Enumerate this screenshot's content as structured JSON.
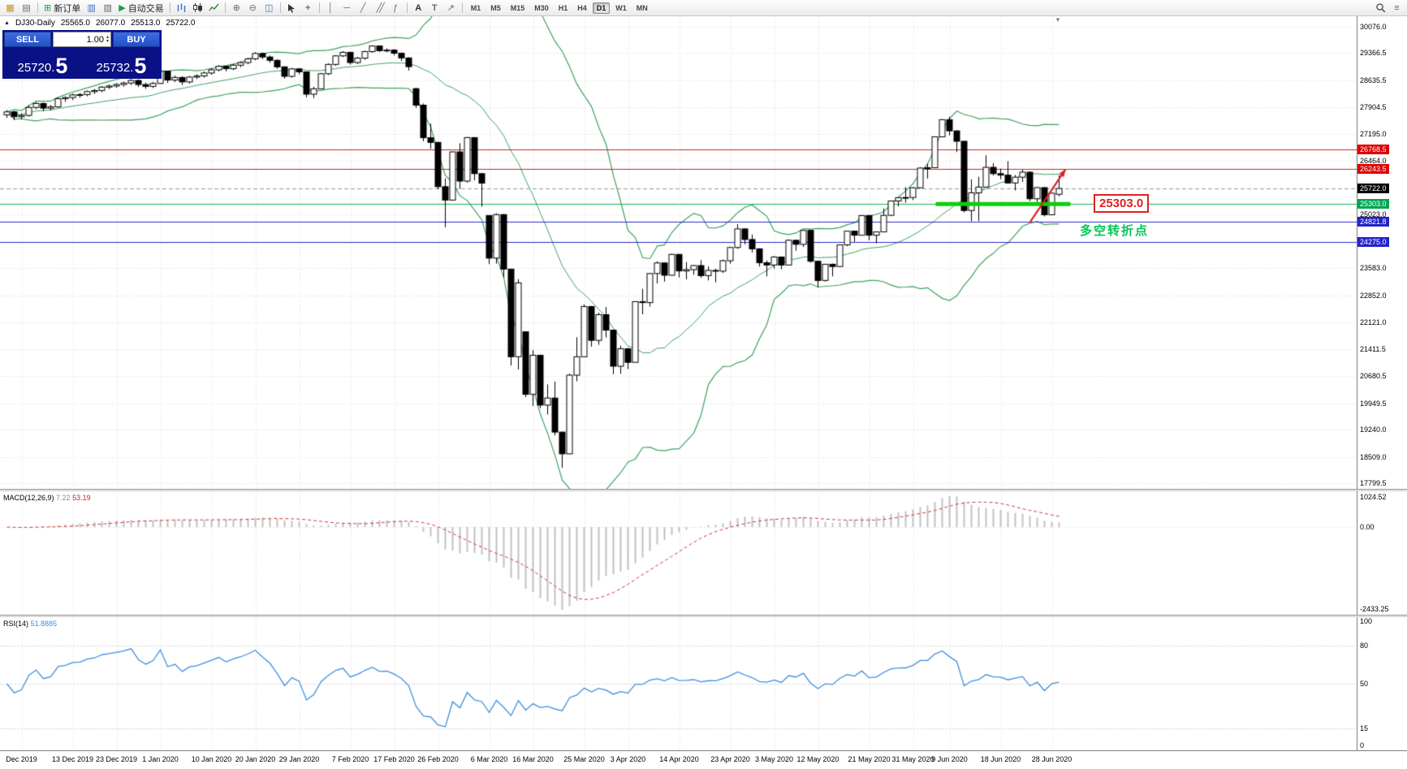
{
  "toolbar": {
    "new_order": "新订单",
    "autotrading": "自动交易",
    "timeframes": [
      "M1",
      "M5",
      "M15",
      "M30",
      "H1",
      "H4",
      "D1",
      "W1",
      "MN"
    ],
    "active_timeframe": "D1"
  },
  "icons": {
    "collapse_triangle": "▲",
    "spinner_up": "▴",
    "spinner_down": "▾",
    "chart_window": "▦",
    "profiles": "▤",
    "new_order": "⊞",
    "navigator": "▥",
    "terminal": "▧",
    "autotrading_play": "▶",
    "zoom_in": "⊕",
    "zoom_out": "⊖",
    "tile_windows": "◫",
    "crosshair": "+",
    "vline": "│",
    "hline": "─",
    "trendline": "╱",
    "channel": "╱╱",
    "fibonacci": "ƒ",
    "text_tool": "A",
    "label_tool": "T",
    "arrows": "↗",
    "menu": "≡",
    "shift_marker": "▼"
  },
  "chart_info": {
    "symbol": "DJ30-Daily",
    "open": "25565.0",
    "high": "26077.0",
    "low": "25513.0",
    "close": "25722.0"
  },
  "trade_panel": {
    "sell_label": "SELL",
    "buy_label": "BUY",
    "volume": "1.00",
    "sell_price_main": "25720.",
    "sell_price_big": "5",
    "buy_price_main": "25732.",
    "buy_price_big": "5"
  },
  "annotations": {
    "price_box_text": "25303.0",
    "turning_point_text": "多空转折点"
  },
  "indicator_labels": {
    "macd_name": "MACD(12,26,9)",
    "macd_value": "7.22",
    "macd_signal": "53.19",
    "rsi_name": "RSI(14)",
    "rsi_value": "51.8885"
  },
  "chart_data": {
    "type": "candlestick",
    "title": "DJ30 Daily",
    "y_range": [
      17650,
      30350
    ],
    "layout": {
      "candle_spacing": 9,
      "candle_width": 7,
      "plot_left": 5
    },
    "y_axis_labels": [
      30076.0,
      29366.5,
      28635.5,
      27904.5,
      27195.0,
      26464.0,
      25023.0,
      23583.0,
      22852.0,
      22121.0,
      21411.5,
      20680.5,
      19949.5,
      19240.0,
      18509.0,
      17799.5
    ],
    "price_tags": [
      {
        "text": "26768.5",
        "price": 26768.5,
        "bg": "#dd0000"
      },
      {
        "text": "26243.5",
        "price": 26243.5,
        "bg": "#dd0000"
      },
      {
        "text": "25722.0",
        "price": 25722.0,
        "bg": "#000000"
      },
      {
        "text": "25303.0",
        "price": 25303.0,
        "bg": "#00a651"
      },
      {
        "text": "24821.8",
        "price": 24821.8,
        "bg": "#2323c8"
      },
      {
        "text": "24275.0",
        "price": 24275.0,
        "bg": "#2323c8"
      }
    ],
    "hlines": [
      {
        "price": 26768.5,
        "color": "#cc2222"
      },
      {
        "price": 26243.5,
        "color": "#cc2222"
      },
      {
        "price": 25303.0,
        "color": "#13b24a"
      },
      {
        "price": 24821.8,
        "color": "#2a2ad0"
      },
      {
        "price": 24275.0,
        "color": "#2a2ad0"
      }
    ],
    "current_price": 25722.0,
    "support_segment": {
      "price": 25303.0,
      "from_idx": 128,
      "color": "#0ad00a",
      "width": 5
    },
    "trend_arrow": {
      "from_idx": 140,
      "from_price": 24810,
      "to_idx": 144,
      "to_price": 26240,
      "color": "#e02020"
    },
    "bollinger": {
      "period": 20,
      "deviation": 2,
      "color": "#3fa05f"
    },
    "macd": {
      "fast": 12,
      "slow": 26,
      "signal": 9,
      "axis_labels": [
        "1024.52",
        "0.00",
        "-2433.25"
      ],
      "hist_color": "#c0c0c0",
      "signal_color": "#d23333"
    },
    "rsi": {
      "period": 14,
      "levels": [
        80,
        50,
        15
      ],
      "axis_labels": [
        "100",
        "80",
        "50",
        "15",
        "0"
      ],
      "color": "#3f8ede"
    },
    "date_labels": [
      {
        "text": "Dec 2019",
        "idx": 2
      },
      {
        "text": "13 Dec 2019",
        "idx": 9
      },
      {
        "text": "23 Dec 2019",
        "idx": 15
      },
      {
        "text": "1 Jan 2020",
        "idx": 21
      },
      {
        "text": "10 Jan 2020",
        "idx": 28
      },
      {
        "text": "20 Jan 2020",
        "idx": 34
      },
      {
        "text": "29 Jan 2020",
        "idx": 40
      },
      {
        "text": "7 Feb 2020",
        "idx": 47
      },
      {
        "text": "17 Feb 2020",
        "idx": 53
      },
      {
        "text": "26 Feb 2020",
        "idx": 59
      },
      {
        "text": "6 Mar 2020",
        "idx": 66
      },
      {
        "text": "16 Mar 2020",
        "idx": 72
      },
      {
        "text": "25 Mar 2020",
        "idx": 79
      },
      {
        "text": "3 Apr 2020",
        "idx": 85
      },
      {
        "text": "14 Apr 2020",
        "idx": 92
      },
      {
        "text": "23 Apr 2020",
        "idx": 99
      },
      {
        "text": "3 May 2020",
        "idx": 105
      },
      {
        "text": "12 May 2020",
        "idx": 111
      },
      {
        "text": "21 May 2020",
        "idx": 118
      },
      {
        "text": "31 May 2020",
        "idx": 124
      },
      {
        "text": "9 Jun 2020",
        "idx": 129
      },
      {
        "text": "18 Jun 2020",
        "idx": 136
      },
      {
        "text": "28 Jun 2020",
        "idx": 143
      }
    ],
    "ohlc": [
      [
        27700,
        27830,
        27620,
        27780
      ],
      [
        27780,
        27815,
        27560,
        27650
      ],
      [
        27650,
        27740,
        27575,
        27685
      ],
      [
        27685,
        27955,
        27650,
        27900
      ],
      [
        27900,
        28045,
        27850,
        28005
      ],
      [
        28005,
        28035,
        27795,
        27880
      ],
      [
        27880,
        27965,
        27820,
        27915
      ],
      [
        27915,
        28165,
        27890,
        28135
      ],
      [
        28135,
        28195,
        28050,
        28165
      ],
      [
        28165,
        28275,
        28100,
        28235
      ],
      [
        28235,
        28285,
        28160,
        28245
      ],
      [
        28245,
        28355,
        28200,
        28325
      ],
      [
        28325,
        28395,
        28260,
        28355
      ],
      [
        28355,
        28475,
        28310,
        28445
      ],
      [
        28445,
        28515,
        28390,
        28475
      ],
      [
        28475,
        28555,
        28430,
        28515
      ],
      [
        28515,
        28595,
        28460,
        28555
      ],
      [
        28555,
        28665,
        28500,
        28625
      ],
      [
        28625,
        28655,
        28450,
        28515
      ],
      [
        28515,
        28565,
        28400,
        28465
      ],
      [
        28465,
        28585,
        28420,
        28545
      ],
      [
        28545,
        28905,
        28535,
        28875
      ],
      [
        28875,
        28885,
        28555,
        28635
      ],
      [
        28635,
        28755,
        28580,
        28705
      ],
      [
        28705,
        28735,
        28500,
        28585
      ],
      [
        28585,
        28745,
        28540,
        28715
      ],
      [
        28715,
        28795,
        28660,
        28745
      ],
      [
        28745,
        28865,
        28700,
        28825
      ],
      [
        28825,
        28955,
        28780,
        28910
      ],
      [
        28910,
        29035,
        28870,
        29005
      ],
      [
        29005,
        29025,
        28870,
        28940
      ],
      [
        28940,
        29065,
        28900,
        29035
      ],
      [
        29035,
        29135,
        28980,
        29105
      ],
      [
        29105,
        29235,
        29060,
        29205
      ],
      [
        29205,
        29385,
        29170,
        29350
      ],
      [
        29350,
        29375,
        29200,
        29255
      ],
      [
        29255,
        29295,
        29100,
        29165
      ],
      [
        29165,
        29195,
        28940,
        28990
      ],
      [
        28990,
        29005,
        28670,
        28735
      ],
      [
        28735,
        28965,
        28700,
        28935
      ],
      [
        28935,
        28955,
        28790,
        28855
      ],
      [
        28855,
        28865,
        28170,
        28255
      ],
      [
        28255,
        28455,
        28150,
        28400
      ],
      [
        28400,
        28825,
        28390,
        28805
      ],
      [
        28805,
        29085,
        28770,
        29055
      ],
      [
        29055,
        29305,
        29020,
        29285
      ],
      [
        29285,
        29415,
        29250,
        29380
      ],
      [
        29380,
        29395,
        29050,
        29105
      ],
      [
        29105,
        29255,
        29060,
        29225
      ],
      [
        29225,
        29425,
        29180,
        29400
      ],
      [
        29400,
        29570,
        29370,
        29550
      ],
      [
        29550,
        29565,
        29390,
        29425
      ],
      [
        29425,
        29485,
        29380,
        29440
      ],
      [
        29440,
        29465,
        29300,
        29355
      ],
      [
        29355,
        29375,
        29150,
        29230
      ],
      [
        29230,
        29245,
        28890,
        28995
      ],
      [
        28405,
        28425,
        27890,
        27960
      ],
      [
        27960,
        28005,
        26990,
        27085
      ],
      [
        27085,
        27465,
        26790,
        26960
      ],
      [
        26960,
        26975,
        25700,
        25770
      ],
      [
        25770,
        25995,
        24680,
        25410
      ],
      [
        25410,
        26715,
        25395,
        26705
      ],
      [
        26705,
        26935,
        25710,
        25920
      ],
      [
        25920,
        27105,
        25880,
        27090
      ],
      [
        27090,
        27100,
        25940,
        26120
      ],
      [
        26120,
        26135,
        25230,
        25865
      ],
      [
        24995,
        25005,
        23690,
        23850
      ],
      [
        23850,
        25055,
        23700,
        25020
      ],
      [
        25020,
        25035,
        23330,
        23555
      ],
      [
        23555,
        23565,
        20965,
        21200
      ],
      [
        21200,
        23285,
        20860,
        23185
      ],
      [
        21870,
        21880,
        20115,
        20190
      ],
      [
        20190,
        21380,
        19880,
        21240
      ],
      [
        21240,
        21255,
        19820,
        19900
      ],
      [
        19900,
        20455,
        19650,
        20090
      ],
      [
        20090,
        20535,
        19090,
        19175
      ],
      [
        19175,
        19180,
        18210,
        18590
      ],
      [
        18590,
        20745,
        18585,
        20705
      ],
      [
        20705,
        21725,
        20540,
        21200
      ],
      [
        21200,
        22605,
        21195,
        22550
      ],
      [
        22550,
        22565,
        21470,
        21640
      ],
      [
        21640,
        22385,
        21520,
        22330
      ],
      [
        22330,
        22535,
        21720,
        21915
      ],
      [
        21915,
        21930,
        20730,
        20945
      ],
      [
        20945,
        21495,
        20740,
        21415
      ],
      [
        21415,
        21440,
        20870,
        21050
      ],
      [
        21050,
        22685,
        21045,
        22680
      ],
      [
        22680,
        23025,
        22340,
        22655
      ],
      [
        22655,
        23445,
        22550,
        23435
      ],
      [
        23435,
        23765,
        23170,
        23720
      ],
      [
        23720,
        23730,
        23220,
        23390
      ],
      [
        23390,
        23965,
        23385,
        23950
      ],
      [
        23950,
        23960,
        23330,
        23505
      ],
      [
        23505,
        23745,
        23280,
        23540
      ],
      [
        23540,
        23665,
        23400,
        23650
      ],
      [
        23650,
        23795,
        23320,
        23380
      ],
      [
        23380,
        23625,
        23250,
        23520
      ],
      [
        23520,
        23565,
        23200,
        23500
      ],
      [
        23500,
        23815,
        23450,
        23780
      ],
      [
        23780,
        24155,
        23700,
        24135
      ],
      [
        24135,
        24765,
        24100,
        24635
      ],
      [
        24635,
        24645,
        24220,
        24350
      ],
      [
        24350,
        24485,
        24000,
        24100
      ],
      [
        24100,
        24115,
        23620,
        23725
      ],
      [
        23725,
        23785,
        23360,
        23665
      ],
      [
        23665,
        23905,
        23570,
        23880
      ],
      [
        23880,
        23895,
        23550,
        23665
      ],
      [
        23665,
        24355,
        23660,
        24330
      ],
      [
        24330,
        24345,
        24050,
        24220
      ],
      [
        24220,
        24605,
        24150,
        24595
      ],
      [
        24595,
        24610,
        23730,
        23765
      ],
      [
        23765,
        23775,
        23070,
        23250
      ],
      [
        23250,
        23695,
        23220,
        23685
      ],
      [
        23685,
        23705,
        23360,
        23625
      ],
      [
        23625,
        24215,
        23620,
        24205
      ],
      [
        24205,
        24585,
        24170,
        24575
      ],
      [
        24575,
        24590,
        24290,
        24465
      ],
      [
        24465,
        25005,
        24460,
        24995
      ],
      [
        24995,
        25010,
        24330,
        24465
      ],
      [
        24465,
        24565,
        24250,
        24555
      ],
      [
        24555,
        25185,
        24550,
        25000
      ],
      [
        25000,
        25395,
        24980,
        25385
      ],
      [
        25385,
        25485,
        25240,
        25475
      ],
      [
        25475,
        25760,
        25340,
        25480
      ],
      [
        25480,
        25755,
        25410,
        25740
      ],
      [
        25740,
        26295,
        25735,
        26270
      ],
      [
        26270,
        26385,
        25990,
        26280
      ],
      [
        26280,
        27115,
        26275,
        27110
      ],
      [
        27110,
        27585,
        27100,
        27570
      ],
      [
        27570,
        27645,
        27150,
        27270
      ],
      [
        27270,
        27285,
        26700,
        26990
      ],
      [
        26990,
        26995,
        25080,
        25130
      ],
      [
        25130,
        25965,
        24840,
        25605
      ],
      [
        25605,
        26035,
        24845,
        25760
      ],
      [
        25760,
        26615,
        25755,
        26290
      ],
      [
        26290,
        26405,
        26070,
        26120
      ],
      [
        26120,
        26255,
        25970,
        26080
      ],
      [
        26080,
        26455,
        25850,
        25870
      ],
      [
        25870,
        26085,
        25670,
        26025
      ],
      [
        26025,
        26225,
        25900,
        26160
      ],
      [
        26160,
        26175,
        25380,
        25445
      ],
      [
        25445,
        25755,
        25290,
        25745
      ],
      [
        25745,
        25760,
        24970,
        25015
      ],
      [
        25015,
        25605,
        25010,
        25595
      ],
      [
        25565,
        26077,
        25513,
        25722
      ]
    ]
  }
}
